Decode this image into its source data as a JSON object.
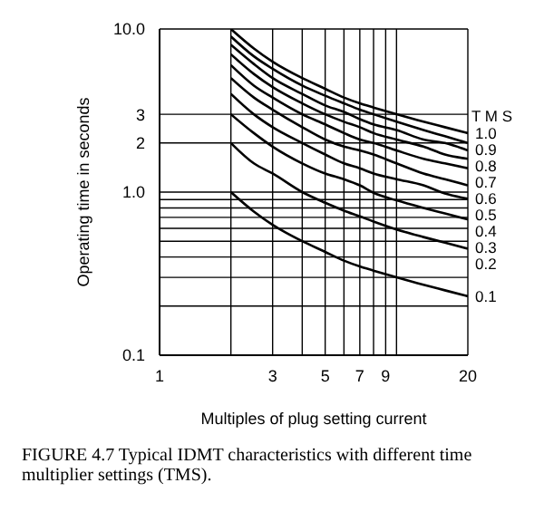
{
  "chart_data": {
    "type": "line",
    "xlabel": "Multiples of plug setting current",
    "ylabel": "Operating time in seconds",
    "legend_title": "T M S",
    "annotations": [
      "FIGURE 4.7 Typical IDMT characteristics with different time multiplier settings (TMS)."
    ],
    "x": [
      2,
      2.5,
      3,
      4,
      5,
      6,
      7,
      8,
      10,
      13,
      16,
      20
    ],
    "series": [
      {
        "name": "1.0",
        "color": "#000000",
        "values": [
          10.0,
          7.6,
          6.3,
          5.0,
          4.3,
          3.8,
          3.5,
          3.3,
          3.0,
          2.7,
          2.5,
          2.3
        ]
      },
      {
        "name": "0.9",
        "color": "#000000",
        "values": [
          9.0,
          6.8,
          5.7,
          4.5,
          3.9,
          3.5,
          3.2,
          3.0,
          2.7,
          2.4,
          2.2,
          2.0
        ]
      },
      {
        "name": "0.8",
        "color": "#000000",
        "values": [
          8.0,
          6.1,
          5.0,
          4.0,
          3.4,
          3.1,
          2.8,
          2.6,
          2.4,
          2.1,
          2.0,
          1.8
        ]
      },
      {
        "name": "0.7",
        "color": "#000000",
        "values": [
          7.0,
          5.3,
          4.4,
          3.5,
          3.0,
          2.7,
          2.5,
          2.3,
          2.1,
          1.9,
          1.7,
          1.6
        ]
      },
      {
        "name": "0.6",
        "color": "#000000",
        "values": [
          6.0,
          4.5,
          3.8,
          3.0,
          2.6,
          2.3,
          2.1,
          2.0,
          1.8,
          1.6,
          1.5,
          1.4
        ]
      },
      {
        "name": "0.5",
        "color": "#000000",
        "values": [
          5.0,
          3.8,
          3.2,
          2.5,
          2.1,
          1.9,
          1.8,
          1.7,
          1.5,
          1.3,
          1.2,
          1.1
        ]
      },
      {
        "name": "0.4",
        "color": "#000000",
        "values": [
          4.0,
          3.0,
          2.5,
          2.0,
          1.7,
          1.5,
          1.4,
          1.3,
          1.2,
          1.1,
          0.98,
          0.91
        ]
      },
      {
        "name": "0.3",
        "color": "#000000",
        "values": [
          3.0,
          2.3,
          1.9,
          1.5,
          1.3,
          1.2,
          1.1,
          0.99,
          0.89,
          0.8,
          0.74,
          0.68
        ]
      },
      {
        "name": "0.2",
        "color": "#000000",
        "values": [
          2.0,
          1.5,
          1.3,
          1.0,
          0.86,
          0.77,
          0.71,
          0.66,
          0.59,
          0.53,
          0.49,
          0.45
        ]
      },
      {
        "name": "0.1",
        "color": "#000000",
        "values": [
          1.0,
          0.76,
          0.63,
          0.5,
          0.43,
          0.38,
          0.35,
          0.33,
          0.3,
          0.27,
          0.25,
          0.23
        ]
      }
    ],
    "log": "xy",
    "xlim": [
      1,
      20
    ],
    "ylim": [
      0.1,
      10
    ],
    "xticks": [
      1,
      {
        "value": 2,
        "label": null
      },
      3,
      {
        "value": 4,
        "label": null
      },
      5,
      {
        "value": 6,
        "label": null
      },
      7,
      {
        "value": 8,
        "label": null
      },
      9,
      {
        "value": 10,
        "label": null
      },
      20
    ],
    "yticks": [
      {
        "value": 0.1,
        "label": "0.1"
      },
      {
        "value": 0.2,
        "label": null
      },
      {
        "value": 0.3,
        "label": null
      },
      {
        "value": 0.4,
        "label": null
      },
      {
        "value": 0.5,
        "label": null
      },
      {
        "value": 0.6,
        "label": null
      },
      {
        "value": 0.7,
        "label": null
      },
      {
        "value": 0.8,
        "label": null
      },
      {
        "value": 0.9,
        "label": null
      },
      {
        "value": 1,
        "label": "1.0"
      },
      2,
      3,
      {
        "value": 10,
        "label": "10.0"
      }
    ],
    "grid": true,
    "marker": "none",
    "line_style": "solid"
  }
}
